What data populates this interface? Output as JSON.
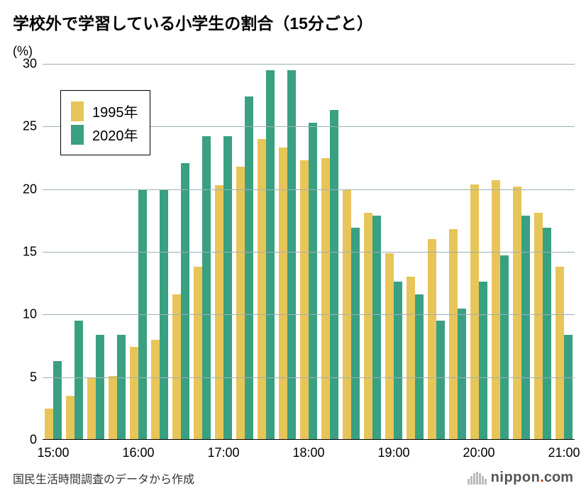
{
  "title": "学校外で学習している小学生の割合（15分ごと）",
  "ylabel": "(%)",
  "source": "国民生活時間調査のデータから作成",
  "brand": {
    "t1": "nippon",
    "t2": ".",
    "t3": "com"
  },
  "chart": {
    "type": "bar",
    "background_color": "#ffffff",
    "grid_color": "#9fb0b3",
    "axis_color": "#000000",
    "ylim": [
      0,
      30
    ],
    "ytick_step": 5,
    "title_fontsize": 23,
    "label_fontsize": 18,
    "tick_fontsize": 18,
    "legend_fontsize": 20,
    "bar_group_width": 0.78,
    "x_categories": [
      "15:00",
      "15:15",
      "15:30",
      "15:45",
      "16:00",
      "16:15",
      "16:30",
      "16:45",
      "17:00",
      "17:15",
      "17:30",
      "17:45",
      "18:00",
      "18:15",
      "18:30",
      "18:45",
      "19:00",
      "19:15",
      "19:30",
      "19:45",
      "20:00",
      "20:15",
      "20:30",
      "20:45",
      "21:00"
    ],
    "x_tick_labels": [
      "15:00",
      "16:00",
      "17:00",
      "18:00",
      "19:00",
      "20:00",
      "21:00"
    ],
    "series": [
      {
        "name": "1995年",
        "color": "#e8c558",
        "values": [
          2.5,
          3.5,
          4.9,
          5.1,
          7.4,
          8.0,
          11.6,
          13.8,
          20.3,
          21.8,
          24.0,
          23.3,
          22.3,
          22.5,
          19.9,
          18.1,
          14.9,
          13.0,
          16.0,
          16.8,
          20.4,
          20.7,
          20.2,
          18.1,
          13.8
        ]
      },
      {
        "name": "2020年",
        "color": "#3aa082",
        "values": [
          6.3,
          9.5,
          8.4,
          8.4,
          20.0,
          20.0,
          22.1,
          24.2,
          24.2,
          27.4,
          29.5,
          29.5,
          25.3,
          26.3,
          16.9,
          17.9,
          12.6,
          11.6,
          9.5,
          10.5,
          12.6,
          14.7,
          17.9,
          16.9,
          8.4
        ]
      }
    ]
  }
}
